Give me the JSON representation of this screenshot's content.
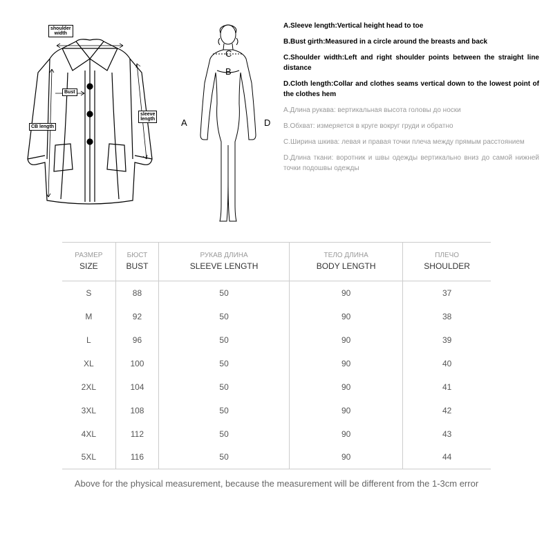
{
  "diagram": {
    "coat_labels": {
      "shoulder": "shoulder\nwidth",
      "bust": "Bust",
      "cb_length": "CB length",
      "sleeve": "sleeve\nlength"
    },
    "body_letters": {
      "A": "A",
      "B": "B",
      "C": "C",
      "D": "D"
    }
  },
  "descriptions_en": [
    "A.Sleeve length:Vertical height head to toe",
    "B.Bust girth:Measured in a circle around the breasts and back",
    "C.Shoulder width:Left and right shoulder points between the straight line distance",
    "D.Cloth length:Collar and clothes seams vertical down to the lowest point of the clothes hem"
  ],
  "descriptions_ru": [
    "А.Длина рукава: вертикальная высота головы до носки",
    "В.Обхват: измеряется в круге вокруг груди и обратно",
    "С.Ширина шкива: левая и правая точки плеча между прямым расстоянием",
    "D.Длина ткани: воротник и швы одежды вертикально вниз до самой нижней точки подошвы одежды"
  ],
  "table": {
    "headers": [
      {
        "ru": "РАЗМЕР",
        "en": "SIZE"
      },
      {
        "ru": "БЮСТ",
        "en": "BUST"
      },
      {
        "ru": "РУКАВ ДЛИНА",
        "en": "SLEEVE LENGTH"
      },
      {
        "ru": "ТЕЛО ДЛИНА",
        "en": "BODY LENGTH"
      },
      {
        "ru": "ПЛЕЧО",
        "en": "SHOULDER"
      }
    ],
    "rows": [
      [
        "S",
        "88",
        "50",
        "90",
        "37"
      ],
      [
        "M",
        "92",
        "50",
        "90",
        "38"
      ],
      [
        "L",
        "96",
        "50",
        "90",
        "39"
      ],
      [
        "XL",
        "100",
        "50",
        "90",
        "40"
      ],
      [
        "2XL",
        "104",
        "50",
        "90",
        "41"
      ],
      [
        "3XL",
        "108",
        "50",
        "90",
        "42"
      ],
      [
        "4XL",
        "112",
        "50",
        "90",
        "43"
      ],
      [
        "5XL",
        "116",
        "50",
        "90",
        "44"
      ]
    ]
  },
  "footer": "Above for the physical measurement, because the measurement will be different from the 1-3cm error",
  "colors": {
    "text": "#000000",
    "muted": "#999999",
    "border": "#cccccc",
    "bg": "#ffffff"
  }
}
